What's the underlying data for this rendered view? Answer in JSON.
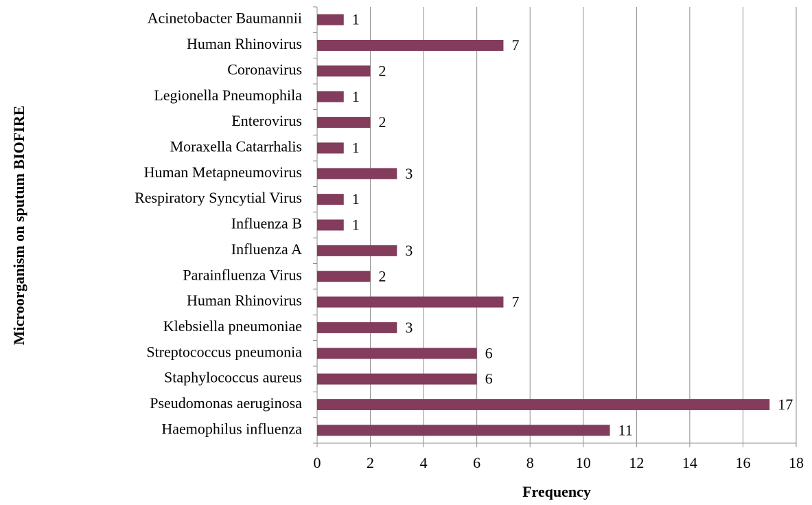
{
  "chart_data": {
    "type": "bar",
    "orientation": "horizontal",
    "xlabel": "Frequency",
    "ylabel": "Microorganism on sputum BIOFIRE",
    "categories": [
      "Acinetobacter Baumannii",
      "Human Rhinovirus",
      "Coronavirus",
      "Legionella Pneumophila",
      "Enterovirus",
      "Moraxella Catarrhalis",
      "Human Metapneumovirus",
      "Respiratory Syncytial Virus",
      "Influenza B",
      "Influenza A",
      "Parainfluenza Virus",
      "Human Rhinovirus",
      "Klebsiella pneumoniae",
      "Streptococcus pneumonia",
      "Staphylococcus aureus",
      "Pseudomonas aeruginosa",
      "Haemophilus influenza"
    ],
    "values": [
      1,
      7,
      2,
      1,
      2,
      1,
      3,
      1,
      1,
      3,
      2,
      7,
      3,
      6,
      6,
      17,
      11
    ],
    "color": "#833c5b",
    "xlim": [
      0,
      18
    ],
    "xticks": [
      0,
      2,
      4,
      6,
      8,
      10,
      12,
      14,
      16,
      18
    ],
    "grid": true
  }
}
